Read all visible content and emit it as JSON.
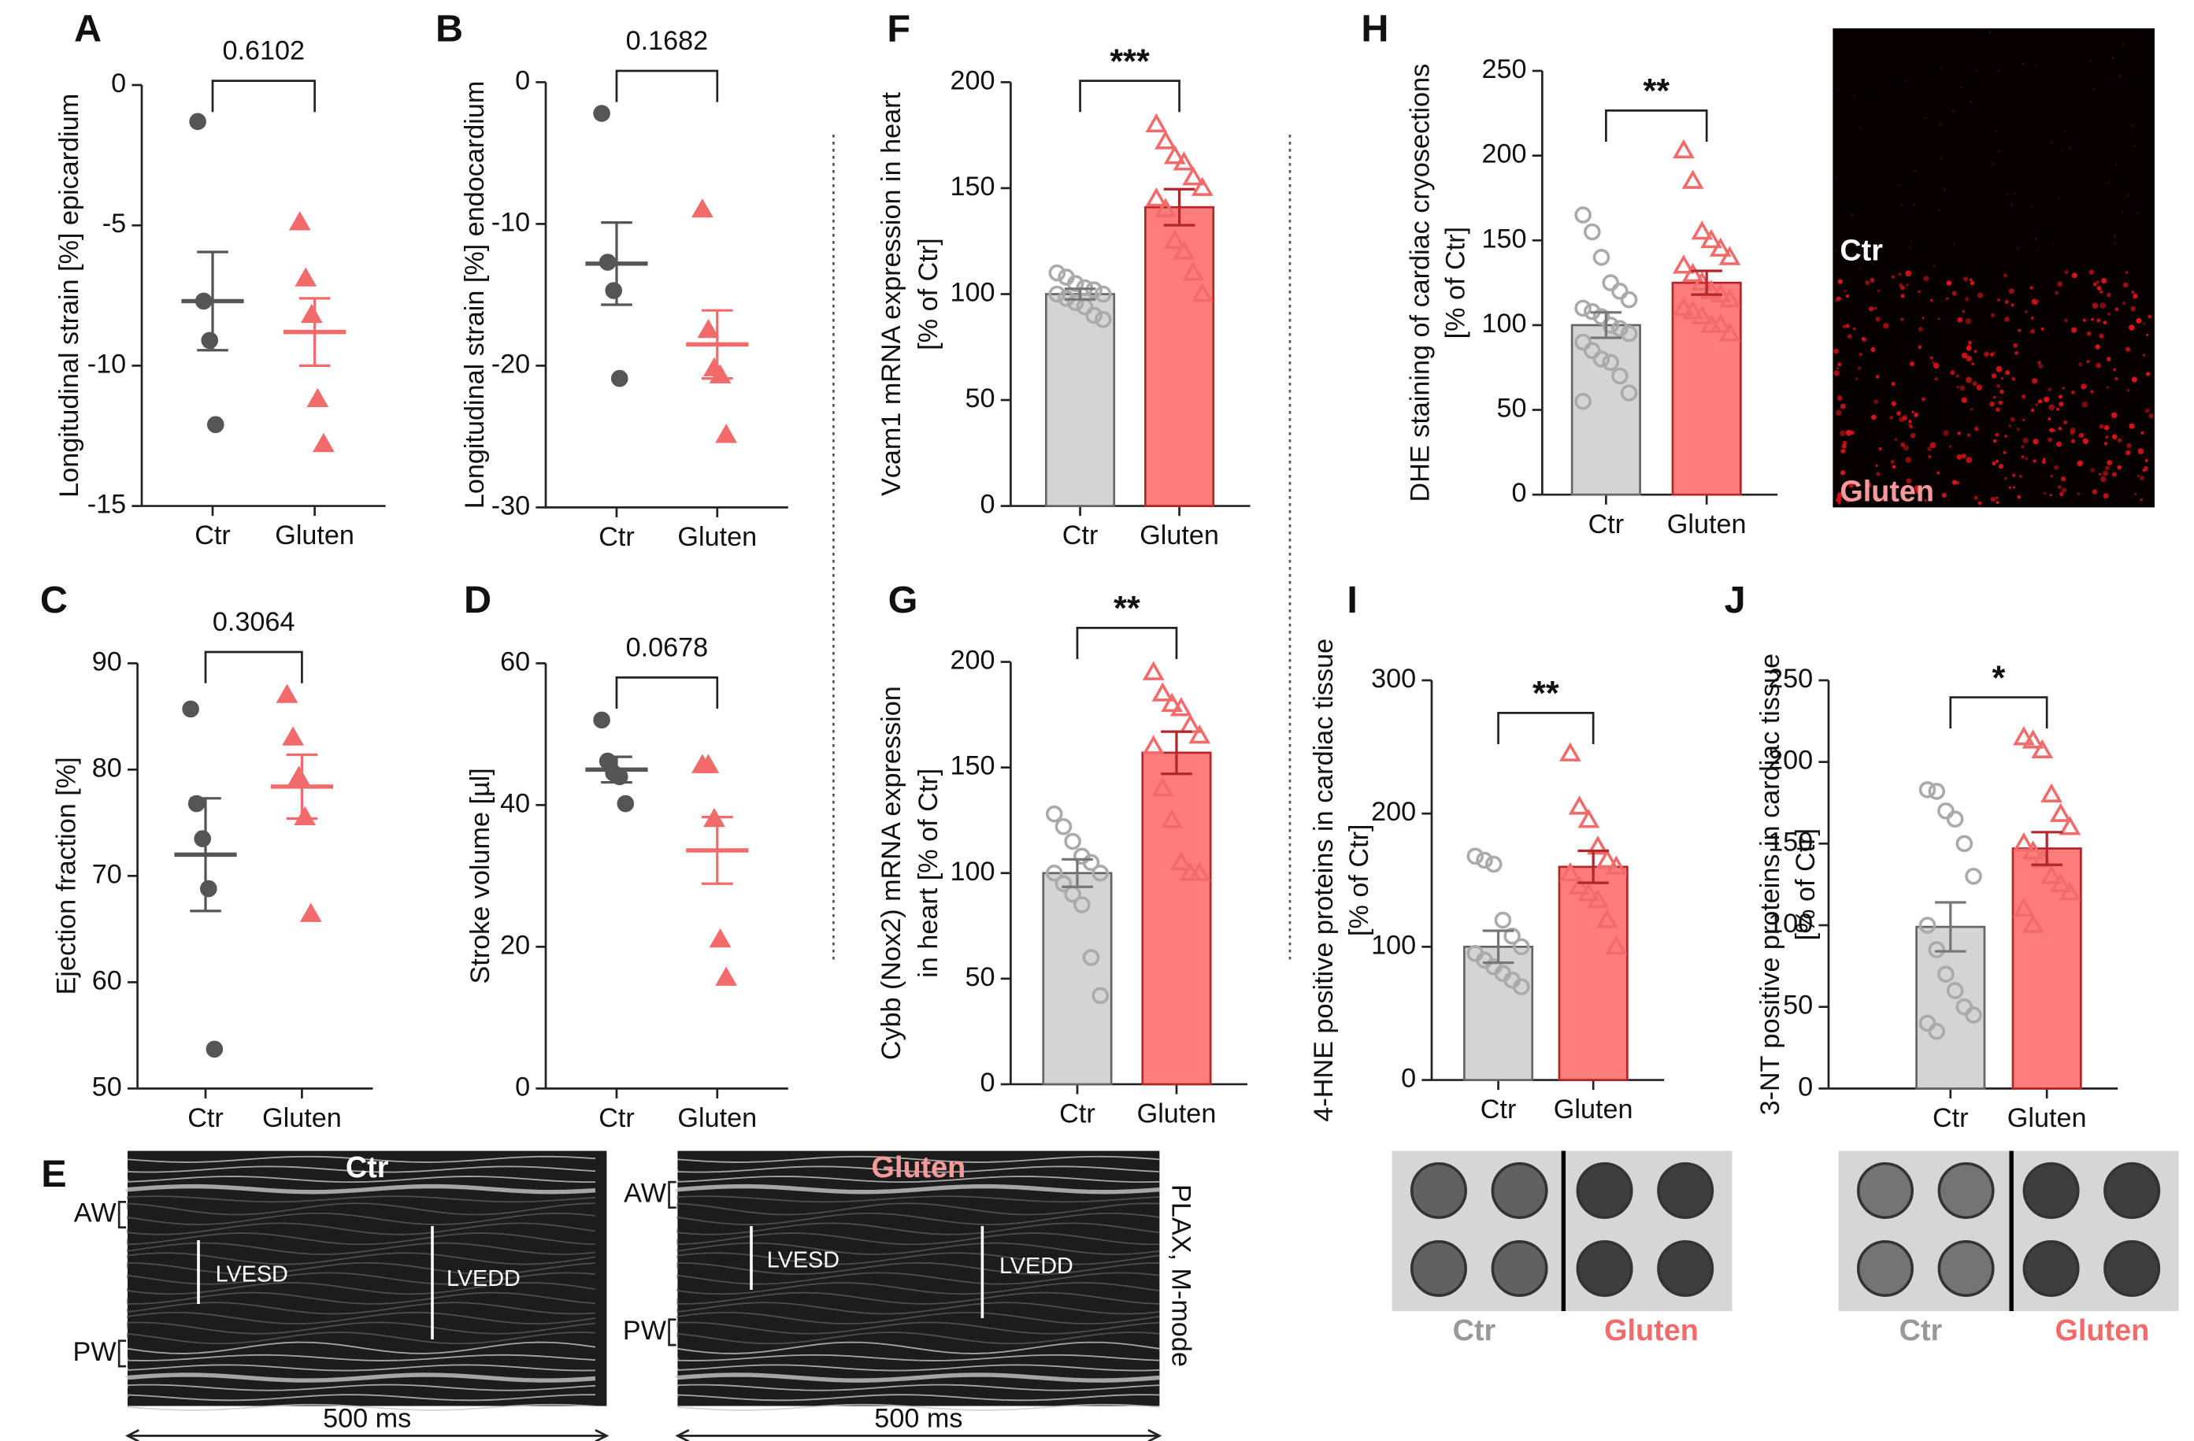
{
  "chart_data": [
    {
      "panel": "A",
      "type": "scatter",
      "ylabel": [
        "Longitudinal strain [%] epicardium"
      ],
      "annotation": "0.6102",
      "categories": [
        "Ctr",
        "Gluten"
      ],
      "ylim": [
        -15,
        0
      ],
      "yticks": [
        0,
        -5,
        -10,
        -15
      ],
      "groups": [
        {
          "color": "#555555",
          "points": [
            -1.3,
            -7.7,
            -9.1,
            -12.1
          ],
          "mean": -7.7,
          "sem": 1.75
        },
        {
          "color": "#f26b6b",
          "points": [
            -4.9,
            -6.9,
            -8.2,
            -11.2,
            -12.8
          ],
          "mean": -8.8,
          "sem": 1.2
        }
      ]
    },
    {
      "panel": "B",
      "type": "scatter",
      "ylabel": [
        "Longitudinal strain [%] endocardium"
      ],
      "annotation": "0.1682",
      "categories": [
        "Ctr",
        "Gluten"
      ],
      "ylim": [
        -30,
        0
      ],
      "yticks": [
        0,
        -10,
        -20,
        -30
      ],
      "groups": [
        {
          "color": "#555555",
          "points": [
            -2.2,
            -12.7,
            -14.7,
            -20.9
          ],
          "mean": -12.8,
          "sem": 2.9
        },
        {
          "color": "#f26b6b",
          "points": [
            -9.0,
            -17.5,
            -20.2,
            -20.7,
            -24.9
          ],
          "mean": -18.5,
          "sem": 2.4
        }
      ]
    },
    {
      "panel": "C",
      "type": "scatter",
      "ylabel": [
        "Ejection fraction [%]"
      ],
      "annotation": "0.3064",
      "categories": [
        "Ctr",
        "Gluten"
      ],
      "ylim": [
        50,
        90
      ],
      "yticks": [
        50,
        60,
        70,
        80,
        90
      ],
      "groups": [
        {
          "color": "#555555",
          "points": [
            85.7,
            76.8,
            73.5,
            68.8,
            53.7
          ],
          "mean": 72.0,
          "sem": 5.3
        },
        {
          "color": "#f26b6b",
          "points": [
            87.0,
            83.0,
            79.3,
            75.5,
            66.4
          ],
          "mean": 78.4,
          "sem": 3.0
        }
      ]
    },
    {
      "panel": "D",
      "type": "scatter",
      "ylabel": [
        "Stroke volume [µl]"
      ],
      "annotation": "0.0678",
      "categories": [
        "Ctr",
        "Gluten"
      ],
      "ylim": [
        0,
        60
      ],
      "yticks": [
        0,
        20,
        40,
        60
      ],
      "groups": [
        {
          "color": "#555555",
          "points": [
            52,
            46.2,
            44.5,
            44,
            40.2
          ],
          "mean": 45,
          "sem": 1.8
        },
        {
          "color": "#f26b6b",
          "points": [
            45.6,
            45.6,
            38,
            21,
            15.6
          ],
          "mean": 33.6,
          "sem": 4.7
        }
      ]
    },
    {
      "panel": "F",
      "type": "bar",
      "ylabel": [
        "Vcam1 mRNA expression in heart",
        "[% of Ctr]"
      ],
      "annotation": "***",
      "categories": [
        "Ctr",
        "Gluten"
      ],
      "ylim": [
        0,
        200
      ],
      "yticks": [
        0,
        50,
        100,
        150,
        200
      ],
      "groups": [
        {
          "color": "#aaaaaa",
          "bar_color": "#d4d4d4",
          "points": [
            110,
            108,
            105,
            103,
            102,
            100,
            100,
            98,
            96,
            94,
            90,
            88
          ],
          "mean": 100,
          "sem": 2.5
        },
        {
          "color": "#f26b6b",
          "bar_color": "#ff7c7c",
          "points": [
            180,
            172,
            165,
            162,
            155,
            150,
            145,
            140,
            125,
            120,
            110,
            100
          ],
          "mean": 141,
          "sem": 8.5
        }
      ]
    },
    {
      "panel": "G",
      "type": "bar",
      "ylabel": [
        "Cybb (Nox2) mRNA expression",
        "in heart [% of Ctr]"
      ],
      "annotation": "**",
      "categories": [
        "Ctr",
        "Gluten"
      ],
      "ylim": [
        0,
        200
      ],
      "yticks": [
        0,
        50,
        100,
        150,
        200
      ],
      "groups": [
        {
          "color": "#aaaaaa",
          "bar_color": "#d4d4d4",
          "points": [
            128,
            122,
            115,
            108,
            105,
            100,
            100,
            95,
            90,
            85,
            60,
            42
          ],
          "mean": 100,
          "sem": 6.5
        },
        {
          "color": "#f26b6b",
          "bar_color": "#ff7c7c",
          "points": [
            195,
            185,
            180,
            178,
            170,
            165,
            160,
            140,
            125,
            105,
            100,
            100
          ],
          "mean": 157,
          "sem": 10
        }
      ]
    },
    {
      "panel": "H",
      "type": "bar",
      "ylabel": [
        "DHE staining of cardiac cryosections",
        "[% of Ctr]"
      ],
      "annotation": "**",
      "categories": [
        "Ctr",
        "Gluten"
      ],
      "ylim": [
        0,
        250
      ],
      "yticks": [
        0,
        50,
        100,
        150,
        200,
        250
      ],
      "groups": [
        {
          "color": "#aaaaaa",
          "bar_color": "#d4d4d4",
          "points": [
            165,
            155,
            140,
            125,
            120,
            115,
            110,
            108,
            105,
            100,
            98,
            95,
            90,
            85,
            80,
            78,
            70,
            60,
            55
          ],
          "mean": 100,
          "sem": 7.5
        },
        {
          "color": "#f26b6b",
          "bar_color": "#ff7c7c",
          "points": [
            203,
            185,
            155,
            150,
            145,
            140,
            135,
            130,
            125,
            120,
            118,
            115,
            110,
            108,
            105,
            100,
            100,
            95
          ],
          "mean": 125,
          "sem": 7
        }
      ]
    },
    {
      "panel": "I",
      "type": "bar",
      "ylabel": [
        "4-HNE positive proteins in cardiac tissue",
        "[% of Ctr]"
      ],
      "annotation": "**",
      "categories": [
        "Ctr",
        "Gluten"
      ],
      "ylim": [
        0,
        300
      ],
      "yticks": [
        0,
        100,
        200,
        300
      ],
      "groups": [
        {
          "color": "#aaaaaa",
          "bar_color": "#d4d4d4",
          "points": [
            168,
            165,
            162,
            120,
            108,
            100,
            95,
            90,
            85,
            80,
            75,
            70
          ],
          "mean": 100,
          "sem": 12
        },
        {
          "color": "#f26b6b",
          "bar_color": "#ff7c7c",
          "points": [
            245,
            205,
            195,
            175,
            165,
            160,
            155,
            145,
            140,
            135,
            120,
            100
          ],
          "mean": 160,
          "sem": 12
        }
      ]
    },
    {
      "panel": "J",
      "type": "bar",
      "ylabel": [
        "3-NT positive proteins in cardiac tissue",
        "[% of Ctr]"
      ],
      "annotation": "*",
      "categories": [
        "Ctr",
        "Gluten"
      ],
      "ylim": [
        0,
        250
      ],
      "yticks": [
        0,
        50,
        100,
        150,
        200,
        250
      ],
      "groups": [
        {
          "color": "#aaaaaa",
          "bar_color": "#d4d4d4",
          "points": [
            183,
            182,
            170,
            165,
            150,
            130,
            100,
            85,
            70,
            60,
            50,
            45,
            40,
            35
          ],
          "mean": 99,
          "sem": 15
        },
        {
          "color": "#f26b6b",
          "bar_color": "#ff7c7c",
          "points": [
            215,
            213,
            207,
            180,
            168,
            160,
            150,
            145,
            140,
            130,
            125,
            120,
            110,
            100
          ],
          "mean": 147,
          "sem": 10
        }
      ]
    }
  ],
  "echo": {
    "letter": "E",
    "mode": "PLAX, M-mode",
    "panels": [
      {
        "title": "Ctr",
        "aw": "AW",
        "pw": "PW",
        "esd": "LVESD",
        "edd": "LVEDD",
        "scale": "500 ms"
      },
      {
        "title": "Gluten",
        "aw": "AW",
        "pw": "PW",
        "esd": "LVESD",
        "edd": "LVEDD",
        "scale": "500 ms"
      }
    ]
  },
  "dhe": {
    "labels": [
      "Ctr",
      "Gluten"
    ]
  },
  "blots": [
    {
      "labels": [
        "Ctr",
        "Gluten"
      ]
    },
    {
      "labels": [
        "Ctr",
        "Gluten"
      ]
    }
  ]
}
